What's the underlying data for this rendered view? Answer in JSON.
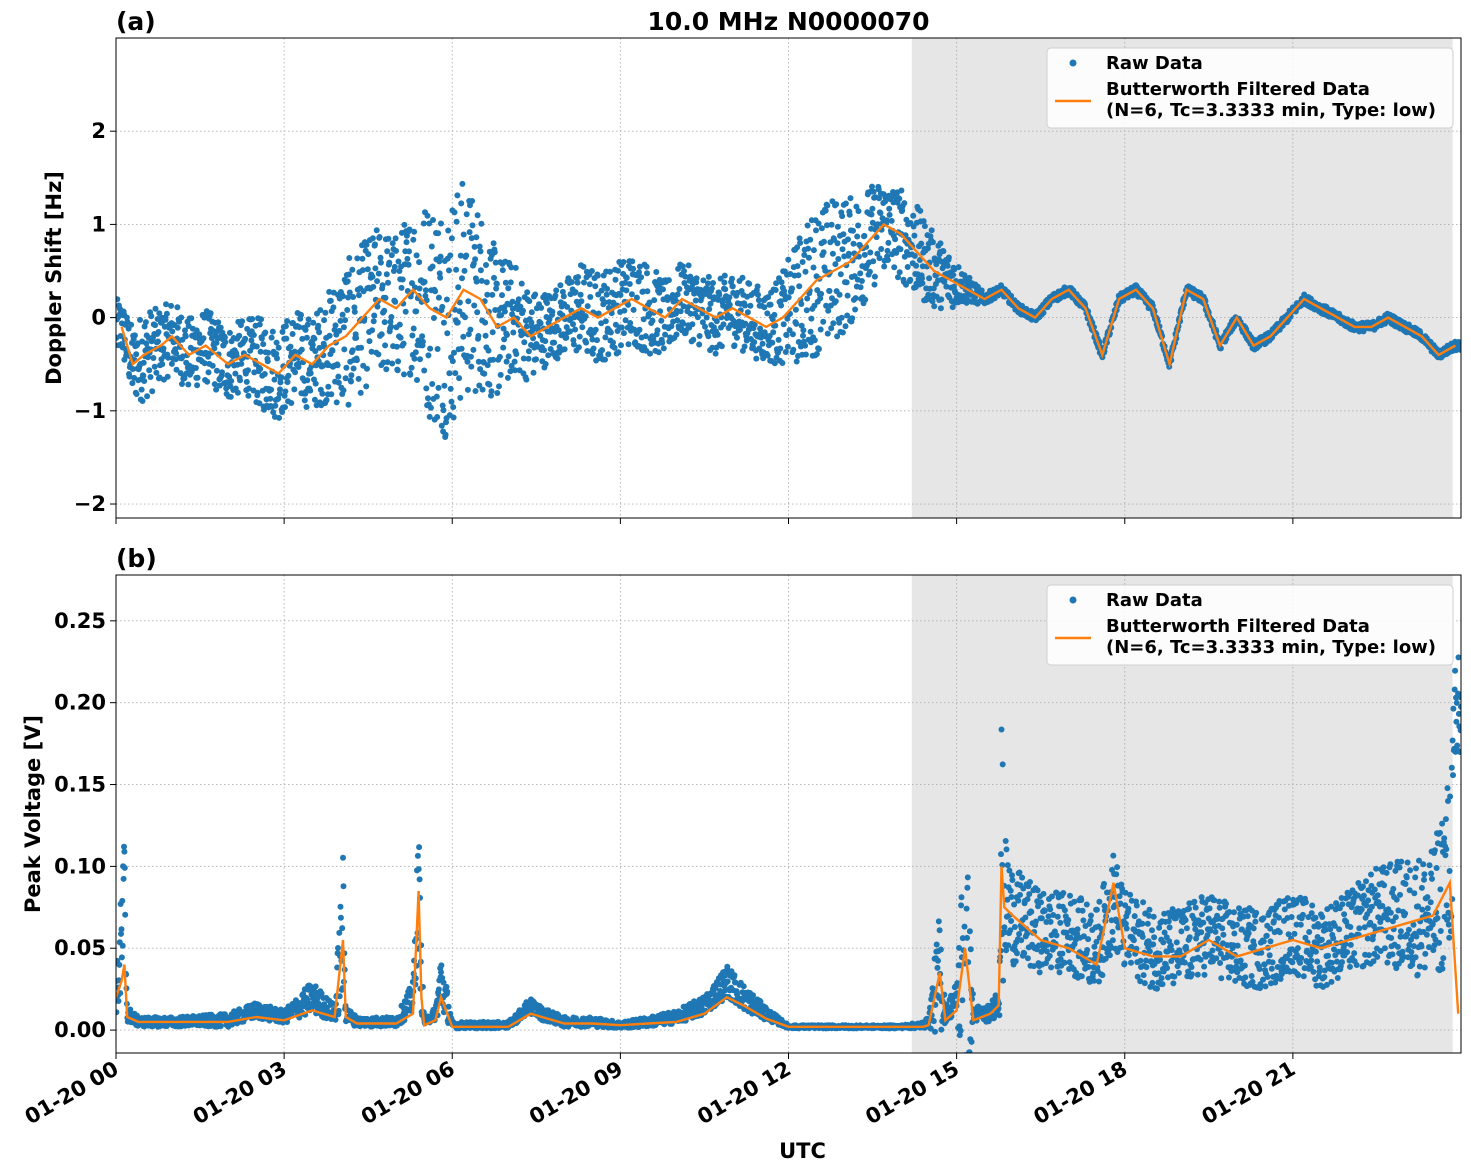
{
  "chart_data": [
    {
      "panel": "(a)",
      "type": "scatter",
      "title": "10.0 MHz N0000070",
      "xlabel": "",
      "ylabel": "Doppler Shift [Hz]",
      "xlim": [
        0,
        24
      ],
      "ylim": [
        -2.15,
        3.0
      ],
      "yticks": [
        -2,
        -1,
        0,
        1,
        2
      ],
      "ytick_labels": [
        "−2",
        "−1",
        "0",
        "1",
        "2"
      ],
      "grid": true,
      "legend": "top-right",
      "shaded_region": [
        14.2,
        23.85
      ],
      "series": [
        {
          "name": "Raw Data",
          "kind": "points",
          "color": "#1f77b4",
          "x": [
            0.1,
            0.3,
            0.5,
            0.8,
            1.0,
            1.3,
            1.6,
            2.0,
            2.3,
            2.6,
            2.9,
            3.2,
            3.5,
            3.8,
            4.1,
            4.4,
            4.7,
            5.0,
            5.3,
            5.6,
            5.9,
            6.2,
            6.5,
            6.8,
            7.1,
            7.4,
            7.7,
            8.0,
            8.3,
            8.6,
            8.9,
            9.2,
            9.5,
            9.8,
            10.1,
            10.4,
            10.7,
            11.0,
            11.3,
            11.6,
            11.9,
            12.2,
            12.5,
            12.8,
            13.1,
            13.4,
            13.7,
            14.0,
            14.3,
            14.6,
            14.9,
            15.2,
            15.5,
            15.8,
            16.1,
            16.4,
            16.7,
            17.0,
            17.3,
            17.6,
            17.9,
            18.2,
            18.5,
            18.8,
            19.1,
            19.4,
            19.7,
            20.0,
            20.3,
            20.6,
            20.9,
            21.2,
            21.5,
            21.8,
            22.1,
            22.4,
            22.7,
            23.0,
            23.3,
            23.6,
            23.9
          ],
          "y": [
            -0.1,
            -0.5,
            -0.4,
            -0.3,
            -0.2,
            -0.4,
            -0.3,
            -0.5,
            -0.4,
            -0.5,
            -0.6,
            -0.4,
            -0.5,
            -0.3,
            -0.2,
            0.0,
            0.2,
            0.1,
            0.3,
            0.1,
            0.0,
            0.3,
            0.2,
            -0.1,
            0.0,
            -0.2,
            -0.1,
            0.0,
            0.1,
            0.0,
            0.1,
            0.2,
            0.1,
            0.0,
            0.2,
            0.1,
            0.0,
            0.1,
            0.0,
            -0.1,
            0.0,
            0.2,
            0.4,
            0.5,
            0.6,
            0.8,
            1.0,
            0.9,
            0.7,
            0.5,
            0.4,
            0.3,
            0.2,
            0.3,
            0.1,
            0.0,
            0.2,
            0.3,
            0.1,
            -0.4,
            0.2,
            0.3,
            0.1,
            -0.5,
            0.3,
            0.2,
            -0.3,
            0.0,
            -0.3,
            -0.2,
            0.0,
            0.2,
            0.1,
            0.0,
            -0.1,
            -0.1,
            0.0,
            -0.1,
            -0.2,
            -0.4,
            -0.3
          ],
          "spread": [
            0.3,
            0.4,
            0.5,
            0.4,
            0.4,
            0.4,
            0.4,
            0.4,
            0.4,
            0.5,
            0.5,
            0.5,
            0.5,
            0.6,
            0.8,
            0.8,
            0.8,
            0.8,
            0.9,
            1.2,
            1.3,
            1.2,
            1.0,
            0.8,
            0.6,
            0.5,
            0.4,
            0.4,
            0.5,
            0.5,
            0.5,
            0.5,
            0.5,
            0.4,
            0.4,
            0.4,
            0.4,
            0.4,
            0.4,
            0.4,
            0.5,
            0.7,
            0.8,
            0.8,
            0.7,
            0.6,
            0.5,
            0.5,
            0.5,
            0.4,
            0.3,
            0.15,
            0.06,
            0.05,
            0.05,
            0.05,
            0.05,
            0.05,
            0.05,
            0.05,
            0.05,
            0.05,
            0.05,
            0.05,
            0.05,
            0.05,
            0.05,
            0.05,
            0.05,
            0.05,
            0.05,
            0.05,
            0.05,
            0.05,
            0.05,
            0.05,
            0.05,
            0.05,
            0.05,
            0.05,
            0.05
          ]
        },
        {
          "name": "Butterworth Filtered Data\n(N=6, Tc=3.3333 min, Type: low)",
          "kind": "line",
          "color": "#ff7f0e",
          "x": [
            0.1,
            0.3,
            0.5,
            0.8,
            1.0,
            1.3,
            1.6,
            2.0,
            2.3,
            2.6,
            2.9,
            3.2,
            3.5,
            3.8,
            4.1,
            4.4,
            4.7,
            5.0,
            5.3,
            5.6,
            5.9,
            6.2,
            6.5,
            6.8,
            7.1,
            7.4,
            7.7,
            8.0,
            8.3,
            8.6,
            8.9,
            9.2,
            9.5,
            9.8,
            10.1,
            10.4,
            10.7,
            11.0,
            11.3,
            11.6,
            11.9,
            12.2,
            12.5,
            12.8,
            13.1,
            13.4,
            13.7,
            14.0,
            14.3,
            14.6,
            14.9,
            15.2,
            15.5,
            15.8,
            16.1,
            16.4,
            16.7,
            17.0,
            17.3,
            17.6,
            17.9,
            18.2,
            18.5,
            18.8,
            19.1,
            19.4,
            19.7,
            20.0,
            20.3,
            20.6,
            20.9,
            21.2,
            21.5,
            21.8,
            22.1,
            22.4,
            22.7,
            23.0,
            23.3,
            23.6,
            23.9
          ],
          "y": [
            -0.1,
            -0.5,
            -0.4,
            -0.3,
            -0.2,
            -0.4,
            -0.3,
            -0.5,
            -0.4,
            -0.5,
            -0.6,
            -0.4,
            -0.5,
            -0.3,
            -0.2,
            0.0,
            0.2,
            0.1,
            0.3,
            0.1,
            0.0,
            0.3,
            0.2,
            -0.1,
            0.0,
            -0.2,
            -0.1,
            0.0,
            0.1,
            0.0,
            0.1,
            0.2,
            0.1,
            0.0,
            0.2,
            0.1,
            0.0,
            0.1,
            0.0,
            -0.1,
            0.0,
            0.2,
            0.4,
            0.5,
            0.6,
            0.8,
            1.0,
            0.9,
            0.7,
            0.5,
            0.4,
            0.3,
            0.2,
            0.3,
            0.1,
            0.0,
            0.2,
            0.3,
            0.1,
            -0.4,
            0.2,
            0.3,
            0.1,
            -0.5,
            0.3,
            0.2,
            -0.3,
            0.0,
            -0.3,
            -0.2,
            0.0,
            0.2,
            0.1,
            0.0,
            -0.1,
            -0.1,
            0.0,
            -0.1,
            -0.2,
            -0.4,
            -0.3
          ]
        }
      ]
    },
    {
      "panel": "(b)",
      "type": "scatter",
      "title": "",
      "xlabel": "UTC",
      "ylabel": "Peak Voltage [V]",
      "xlim": [
        0,
        24
      ],
      "ylim": [
        -0.014,
        0.278
      ],
      "yticks": [
        0.0,
        0.05,
        0.1,
        0.15,
        0.2,
        0.25
      ],
      "ytick_labels": [
        "0.00",
        "0.05",
        "0.10",
        "0.15",
        "0.20",
        "0.25"
      ],
      "xticks": [
        0,
        3,
        6,
        9,
        12,
        15,
        18,
        21
      ],
      "xtick_labels": [
        "01-20 00",
        "01-20 03",
        "01-20 06",
        "01-20 09",
        "01-20 12",
        "01-20 15",
        "01-20 18",
        "01-20 21"
      ],
      "grid": true,
      "legend": "top-right",
      "shaded_region": [
        14.2,
        23.85
      ],
      "series": [
        {
          "name": "Raw Data",
          "kind": "points",
          "color": "#1f77b4",
          "x": [
            0.0,
            0.1,
            0.15,
            0.2,
            0.4,
            1.0,
            2.0,
            2.5,
            3.0,
            3.5,
            3.9,
            4.05,
            4.1,
            4.3,
            5.0,
            5.3,
            5.4,
            5.45,
            5.5,
            5.7,
            5.8,
            6.0,
            7.0,
            7.4,
            7.6,
            8.0,
            8.5,
            9.0,
            9.5,
            10.0,
            10.5,
            10.9,
            11.2,
            11.6,
            12.0,
            13.0,
            14.0,
            14.4,
            14.5,
            14.7,
            14.8,
            15.0,
            15.15,
            15.3,
            15.6,
            15.75,
            15.8,
            15.85,
            16.0,
            16.5,
            17.0,
            17.5,
            17.8,
            18.0,
            18.5,
            19.0,
            19.5,
            20.0,
            20.5,
            21.0,
            21.5,
            22.0,
            22.5,
            23.0,
            23.5,
            23.8,
            23.95
          ],
          "y": [
            0.02,
            0.05,
            0.08,
            0.01,
            0.005,
            0.005,
            0.006,
            0.012,
            0.008,
            0.02,
            0.01,
            0.06,
            0.01,
            0.005,
            0.005,
            0.02,
            0.09,
            0.03,
            0.005,
            0.01,
            0.03,
            0.003,
            0.003,
            0.015,
            0.01,
            0.005,
            0.005,
            0.003,
            0.005,
            0.008,
            0.015,
            0.03,
            0.02,
            0.01,
            0.002,
            0.002,
            0.002,
            0.003,
            0.005,
            0.035,
            0.01,
            0.02,
            0.04,
            0.01,
            0.01,
            0.02,
            0.1,
            0.08,
            0.07,
            0.06,
            0.06,
            0.05,
            0.08,
            0.06,
            0.05,
            0.05,
            0.06,
            0.05,
            0.05,
            0.06,
            0.05,
            0.06,
            0.07,
            0.07,
            0.07,
            0.1,
            0.2
          ],
          "spread": [
            0.01,
            0.04,
            0.05,
            0.005,
            0.003,
            0.003,
            0.004,
            0.005,
            0.004,
            0.01,
            0.005,
            0.05,
            0.005,
            0.003,
            0.003,
            0.01,
            0.04,
            0.02,
            0.002,
            0.004,
            0.02,
            0.002,
            0.002,
            0.005,
            0.004,
            0.003,
            0.003,
            0.002,
            0.003,
            0.004,
            0.006,
            0.01,
            0.008,
            0.004,
            0.001,
            0.001,
            0.001,
            0.002,
            0.003,
            0.04,
            0.005,
            0.01,
            0.1,
            0.005,
            0.005,
            0.01,
            0.1,
            0.04,
            0.03,
            0.025,
            0.025,
            0.025,
            0.03,
            0.025,
            0.025,
            0.025,
            0.025,
            0.025,
            0.025,
            0.025,
            0.025,
            0.025,
            0.03,
            0.035,
            0.04,
            0.06,
            0.06
          ]
        },
        {
          "name": "Butterworth Filtered Data\n(N=6, Tc=3.3333 min, Type: low)",
          "kind": "line",
          "color": "#ff7f0e",
          "x": [
            0.0,
            0.1,
            0.15,
            0.2,
            0.4,
            1.0,
            2.0,
            2.5,
            3.0,
            3.5,
            3.9,
            4.05,
            4.1,
            4.3,
            5.0,
            5.3,
            5.4,
            5.45,
            5.5,
            5.7,
            5.8,
            6.0,
            7.0,
            7.4,
            7.6,
            8.0,
            8.5,
            9.0,
            9.5,
            10.0,
            10.5,
            10.9,
            11.2,
            11.6,
            12.0,
            13.0,
            14.0,
            14.4,
            14.5,
            14.7,
            14.8,
            15.0,
            15.15,
            15.3,
            15.6,
            15.75,
            15.8,
            15.85,
            16.0,
            16.5,
            17.0,
            17.5,
            17.8,
            18.0,
            18.5,
            19.0,
            19.5,
            20.0,
            20.5,
            21.0,
            21.5,
            22.0,
            22.5,
            23.0,
            23.5,
            23.8,
            23.95
          ],
          "y": [
            0.02,
            0.03,
            0.04,
            0.008,
            0.005,
            0.005,
            0.005,
            0.008,
            0.006,
            0.012,
            0.008,
            0.055,
            0.008,
            0.004,
            0.004,
            0.01,
            0.085,
            0.02,
            0.003,
            0.006,
            0.02,
            0.002,
            0.002,
            0.01,
            0.008,
            0.004,
            0.004,
            0.003,
            0.004,
            0.005,
            0.01,
            0.02,
            0.015,
            0.007,
            0.002,
            0.002,
            0.002,
            0.002,
            0.003,
            0.035,
            0.006,
            0.012,
            0.05,
            0.006,
            0.01,
            0.015,
            0.1,
            0.075,
            0.07,
            0.055,
            0.05,
            0.04,
            0.09,
            0.05,
            0.045,
            0.045,
            0.055,
            0.045,
            0.05,
            0.055,
            0.05,
            0.055,
            0.06,
            0.065,
            0.07,
            0.09,
            0.01
          ]
        }
      ]
    }
  ]
}
